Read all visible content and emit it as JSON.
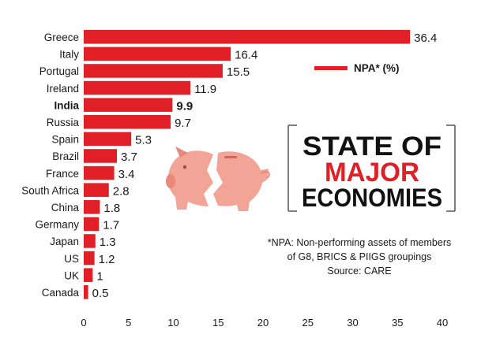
{
  "colors": {
    "bar": "#e01f27",
    "text": "#1a1a1a",
    "title_black": "#111111",
    "title_red": "#e01f27",
    "pig": "#f2a497",
    "pig_dark": "#e8897a"
  },
  "legend": {
    "label": "NPA* (%)"
  },
  "title": {
    "line1": "STATE OF",
    "line2": "MAJOR",
    "line3": "ECONOMIES"
  },
  "footnote": {
    "line1": "*NPA: Non-performing assets of members",
    "line2": "of G8, BRICS & PIIGS groupings",
    "line3": "Source: CARE"
  },
  "icon": "broken-piggy-bank-icon",
  "chart_data": {
    "type": "bar",
    "orientation": "horizontal",
    "categories": [
      "Greece",
      "Italy",
      "Portugal",
      "Ireland",
      "India",
      "Russia",
      "Spain",
      "Brazil",
      "France",
      "South Africa",
      "China",
      "Germany",
      "Japan",
      "US",
      "UK",
      "Canada"
    ],
    "value_labels": [
      "36.4",
      "16.4",
      "15.5",
      "11.9",
      "9.9",
      "9.7",
      "5.3",
      "3.7",
      "3.4",
      "2.8",
      "1.8",
      "1.7",
      "1.3",
      "1.2",
      "1",
      "0.5"
    ],
    "series": [
      {
        "name": "NPA* (%)",
        "values": [
          36.4,
          16.4,
          15.5,
          11.9,
          9.9,
          9.7,
          5.3,
          3.7,
          3.4,
          2.8,
          1.8,
          1.7,
          1.3,
          1.2,
          1,
          0.5
        ]
      }
    ],
    "highlight": "India",
    "xlim": [
      0,
      40
    ],
    "xticks": [
      "0",
      "5",
      "10",
      "15",
      "20",
      "25",
      "30",
      "35",
      "40"
    ],
    "grid": false,
    "legend_position": "upper-right"
  }
}
